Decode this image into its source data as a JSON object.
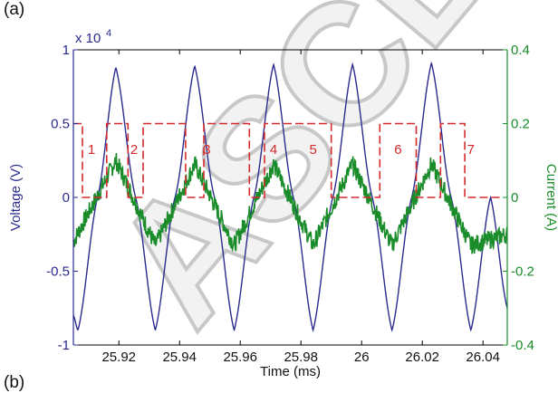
{
  "panel_labels": {
    "top": "(a)",
    "bottom": "(b)"
  },
  "watermark": "ASCE",
  "colors": {
    "voltage": "#2b2b8f",
    "current": "#1a8c2a",
    "dash": "#d42a2a",
    "left_axis": "#2b2b8f",
    "right_axis": "#1a8c2a",
    "watermark": "#c8c8c8"
  },
  "chart_data": {
    "type": "line",
    "title": "",
    "xlabel": "Time (ms)",
    "ylabel_left": "Voltage (V)",
    "ylabel_right": "Current (A)",
    "left_axis_multiplier": "x 10",
    "left_axis_exponent": "4",
    "xlim": [
      25.905,
      26.048
    ],
    "ylim_left": [
      -1,
      1
    ],
    "ylim_right": [
      -0.4,
      0.4
    ],
    "x_ticks": [
      25.92,
      25.94,
      25.96,
      25.98,
      26,
      26.02,
      26.04
    ],
    "x_tick_labels": [
      "25.92",
      "25.94",
      "25.96",
      "25.98",
      "26",
      "26.02",
      "26.04"
    ],
    "y_left_ticks": [
      -1,
      -0.5,
      0,
      0.5,
      1
    ],
    "y_left_tick_labels": [
      "-1",
      "-0.5",
      "0",
      "0.5",
      "1"
    ],
    "y_right_ticks": [
      -0.4,
      -0.2,
      0,
      0.2,
      0.4
    ],
    "y_right_tick_labels": [
      "-0.4",
      "-0.2",
      "0",
      "0.2",
      "0.4"
    ],
    "grid": false,
    "series": [
      {
        "axis": "left",
        "style": "solid",
        "unit_scale": 10000,
        "x": [
          25.905,
          25.9065,
          25.913,
          25.919,
          25.9255,
          25.932,
          25.9385,
          25.945,
          25.9515,
          25.958,
          25.9645,
          25.971,
          25.9775,
          25.984,
          25.9905,
          25.997,
          26.0035,
          26.01,
          26.0165,
          26.023,
          26.0295,
          26.036,
          26.0425,
          26.048
        ],
        "values": [
          -0.8,
          -0.9,
          0.0,
          0.88,
          0.0,
          -0.9,
          0.0,
          0.89,
          0.0,
          -0.9,
          0.0,
          0.9,
          0.0,
          -0.9,
          0.0,
          0.9,
          0.0,
          -0.9,
          0.0,
          0.91,
          0.0,
          -0.9,
          0.0,
          -0.75
        ]
      },
      {
        "axis": "right",
        "style": "noisy",
        "x": [
          25.905,
          25.919,
          25.932,
          25.945,
          25.958,
          25.971,
          25.984,
          25.997,
          26.01,
          26.023,
          26.036,
          26.048
        ],
        "values": [
          -0.12,
          0.1,
          -0.13,
          0.09,
          -0.13,
          0.09,
          -0.13,
          0.09,
          -0.13,
          0.09,
          -0.13,
          -0.1
        ]
      },
      {
        "axis": "left",
        "style": "dashed",
        "x": [
          25.905,
          25.908,
          25.908,
          25.916,
          25.916,
          25.919,
          25.919,
          25.923,
          25.923,
          25.928,
          25.928,
          25.942,
          25.942,
          25.948,
          25.948,
          25.963,
          25.963,
          25.968,
          25.968,
          25.99,
          25.99,
          26.006,
          26.006,
          26.018,
          26.018,
          26.026,
          26.026,
          26.034,
          26.034,
          26.046
        ],
        "values": [
          0.5,
          0.5,
          0.0,
          0.0,
          0.5,
          0.5,
          0.5,
          0.5,
          0.0,
          0.0,
          0.5,
          0.5,
          0.0,
          0.0,
          0.5,
          0.5,
          0.0,
          0.0,
          0.5,
          0.5,
          0.0,
          0.0,
          0.5,
          0.5,
          0.0,
          0.0,
          0.5,
          0.5,
          0.0,
          0.0
        ]
      }
    ],
    "annotations": [
      "1",
      "2",
      "3",
      "4",
      "5",
      "6",
      "7"
    ],
    "annotation_x": [
      25.911,
      25.925,
      25.949,
      25.971,
      25.984,
      26.012,
      26.036
    ],
    "annotation_y": [
      0.33,
      0.33,
      0.33,
      0.33,
      0.33,
      0.33,
      0.33
    ]
  }
}
